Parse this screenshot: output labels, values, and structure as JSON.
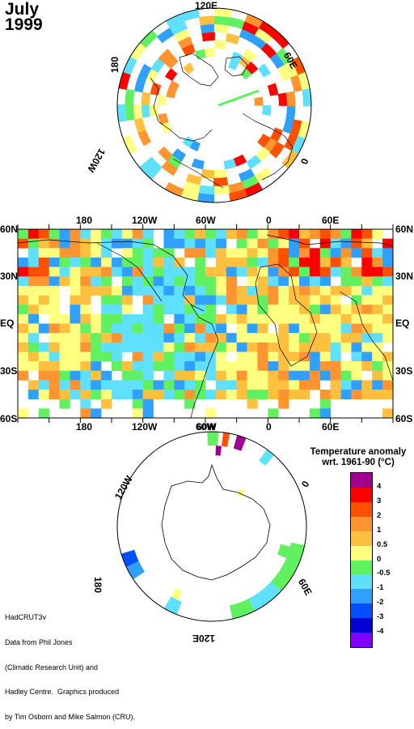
{
  "header": {
    "month": "July",
    "year": "1999"
  },
  "north_map": {
    "longitude_labels": [
      "120E",
      "60E",
      "0",
      "120W",
      "180"
    ]
  },
  "global_map": {
    "top_lon_labels": [
      "180",
      "120W",
      "60W",
      "0",
      "60E"
    ],
    "bottom_lon_labels": [
      "180",
      "120W",
      "60W",
      "0",
      "60E"
    ],
    "lat_labels": [
      "60N",
      "30N",
      "EQ",
      "30S",
      "60S"
    ]
  },
  "south_map": {
    "longitude_labels": [
      "60W",
      "120W",
      "0",
      "180",
      "60E",
      "120E"
    ]
  },
  "legend": {
    "title_line1": "Temperature anomaly",
    "title_line2": "wrt. 1961-90  (°C)",
    "ticks": [
      "4",
      "3",
      "2",
      "1",
      "0.5",
      "0",
      "-0.5",
      "-1",
      "-2",
      "-3",
      "-4"
    ],
    "colors": [
      "#a00090",
      "#ff0000",
      "#ff5000",
      "#ff9430",
      "#ffc040",
      "#ffff80",
      "#60f060",
      "#60e0ff",
      "#30a0ff",
      "#0050ff",
      "#0000d0",
      "#8000ff"
    ]
  },
  "credits": {
    "line1": "HadCRUT3v",
    "line2": "Data from Phil Jones",
    "line3": "(Climatic Research Unit) and",
    "line4": "Hadley Centre.  Graphics produced",
    "line5": "by Tim Osborn and Mike Salmon (CRU)."
  }
}
